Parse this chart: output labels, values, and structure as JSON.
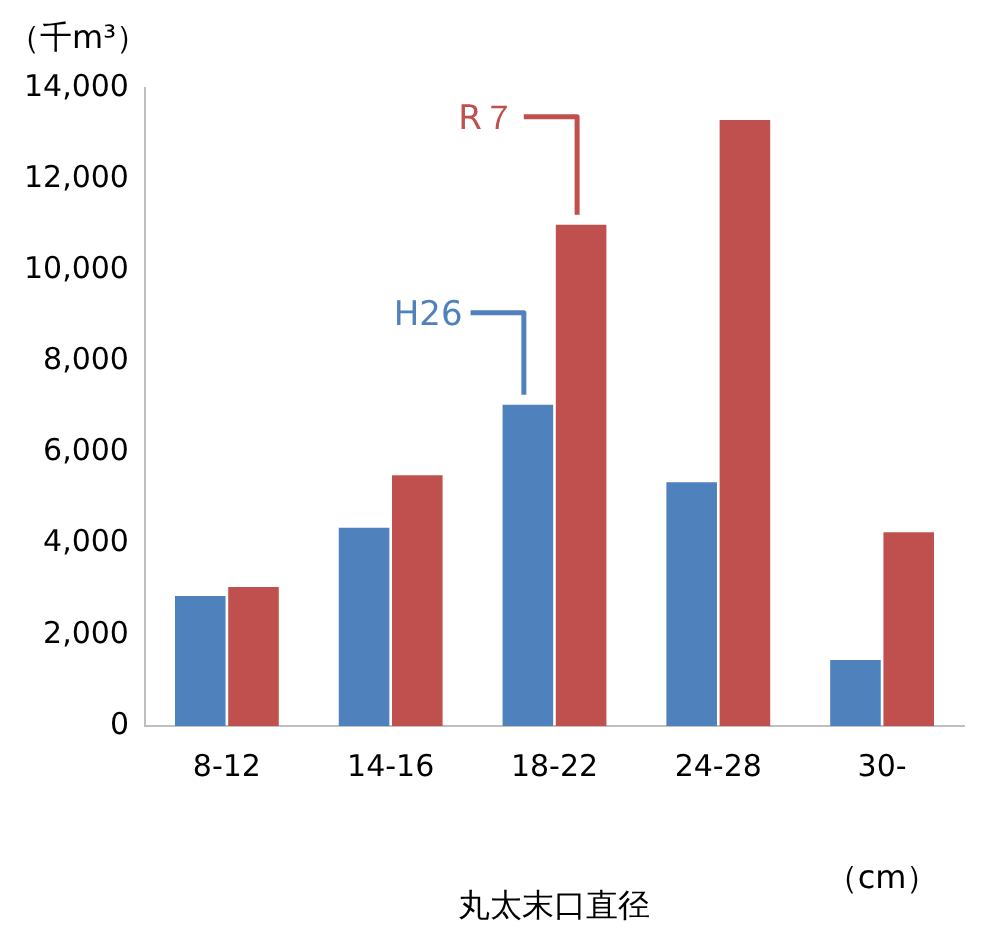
{
  "chart_data": {
    "type": "bar",
    "ylabel": "（千m³）",
    "xlabel": "丸太末口直径",
    "annotations": [
      "（cm）"
    ],
    "categories": [
      "8-12",
      "14-16",
      "18-22",
      "24-28",
      "30-"
    ],
    "series": [
      {
        "name": "H26",
        "color": "#4f81bd",
        "values": [
          2850,
          4350,
          7050,
          5350,
          1450
        ]
      },
      {
        "name": "R７",
        "color": "#c0504d",
        "values": [
          3050,
          5500,
          11000,
          13300,
          4250
        ]
      }
    ],
    "ylim": [
      0,
      14000
    ],
    "yticks": [
      0,
      {
        "value": 2000,
        "label": "2,000"
      },
      {
        "value": 4000,
        "label": "4,000"
      },
      {
        "value": 6000,
        "label": "6,000"
      },
      {
        "value": 8000,
        "label": "8,000"
      },
      {
        "value": 10000,
        "label": "10,000"
      },
      {
        "value": 12000,
        "label": "12,000"
      },
      {
        "value": 14000,
        "label": "14,000"
      }
    ],
    "grid": false,
    "legend": false
  }
}
